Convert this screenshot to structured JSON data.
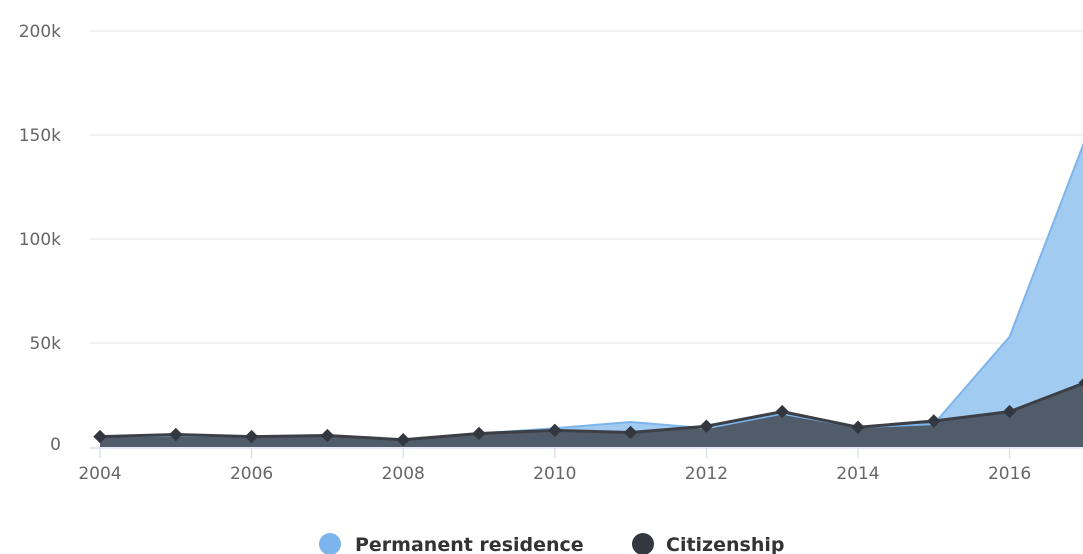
{
  "chart_data": {
    "type": "area",
    "x": [
      2004,
      2005,
      2006,
      2007,
      2008,
      2009,
      2010,
      2011,
      2012,
      2013,
      2014,
      2015,
      2016,
      2017
    ],
    "series": [
      {
        "name": "Permanent residence",
        "color": "#90c2ef",
        "line_color": "#7cb5ec",
        "values": [
          5000,
          5500,
          5000,
          5500,
          3500,
          6500,
          9000,
          12000,
          9000,
          16000,
          9500,
          11000,
          53000,
          148000
        ]
      },
      {
        "name": "Citizenship",
        "color": "#4a5260",
        "line_color": "#3c3f45",
        "values": [
          5000,
          6000,
          5000,
          5500,
          3500,
          6500,
          8000,
          7000,
          10000,
          17000,
          9500,
          12500,
          17000,
          31000
        ]
      }
    ],
    "ylim": [
      0,
      200000
    ],
    "yticks": [
      0,
      50000,
      100000,
      150000,
      200000
    ],
    "ytick_labels": [
      "0",
      "50k",
      "100k",
      "150k",
      "200k"
    ],
    "xtick_labels": [
      "2004",
      "2006",
      "2008",
      "2010",
      "2012",
      "2014",
      "2016"
    ],
    "xticks": [
      2004,
      2006,
      2008,
      2010,
      2012,
      2014,
      2016
    ],
    "grid": true,
    "legend_position": "bottom-center",
    "title": "",
    "xlabel": "",
    "ylabel": ""
  }
}
